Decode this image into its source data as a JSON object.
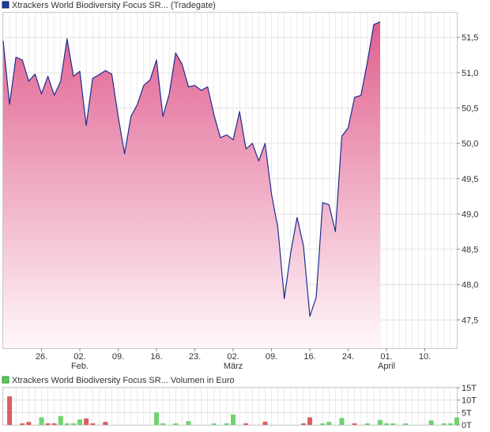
{
  "price_chart_title": "Xtrackers World Biodiversity Focus SR... (Tradegate)",
  "volume_chart_title": "Xtrackers World Biodiversity Focus SR... Volumen in Euro",
  "colors": {
    "price_line": "#1f2c8f",
    "area_top": "#e0608f",
    "area_bottom": "#fff7fa",
    "volume_up": "#6fd36f",
    "volume_down": "#d95f5f",
    "grid": "#dcdcdc",
    "legend_price": "#1f3f9f",
    "legend_volume": "#5cc85c"
  },
  "chart_data": [
    {
      "type": "area",
      "ylim": [
        47.1,
        51.85
      ],
      "y_ticks": [
        47.5,
        48.0,
        48.5,
        49.0,
        49.5,
        50.0,
        50.5,
        51.0,
        51.5
      ],
      "y_tick_labels": [
        "47,5",
        "48,0",
        "48,5",
        "49,0",
        "49,5",
        "50,0",
        "50,5",
        "51,0",
        "51,5"
      ],
      "x_ticks": [
        {
          "i": 6,
          "label": "26.",
          "sublabel": ""
        },
        {
          "i": 12,
          "label": "02.",
          "sublabel": "Feb."
        },
        {
          "i": 18,
          "label": "09.",
          "sublabel": ""
        },
        {
          "i": 24,
          "label": "16.",
          "sublabel": ""
        },
        {
          "i": 30,
          "label": "23.",
          "sublabel": ""
        },
        {
          "i": 36,
          "label": "02.",
          "sublabel": "März"
        },
        {
          "i": 42,
          "label": "09.",
          "sublabel": ""
        },
        {
          "i": 48,
          "label": "16.",
          "sublabel": ""
        },
        {
          "i": 54,
          "label": "24.",
          "sublabel": ""
        },
        {
          "i": 60,
          "label": "01.",
          "sublabel": "April"
        },
        {
          "i": 66,
          "label": "10.",
          "sublabel": ""
        }
      ],
      "values": [
        51.45,
        50.55,
        51.22,
        51.18,
        50.88,
        50.98,
        50.7,
        50.95,
        50.68,
        50.88,
        51.48,
        50.95,
        51.02,
        50.25,
        50.92,
        50.97,
        51.03,
        50.98,
        50.38,
        49.85,
        50.38,
        50.55,
        50.82,
        50.9,
        51.18,
        50.38,
        50.7,
        51.28,
        51.12,
        50.8,
        50.82,
        50.75,
        50.8,
        50.4,
        50.08,
        50.12,
        50.05,
        50.45,
        49.92,
        50.0,
        49.75,
        50.0,
        49.28,
        48.8,
        47.8,
        48.45,
        48.95,
        48.55,
        47.55,
        47.82,
        49.16,
        49.13,
        48.75,
        50.1,
        50.22,
        50.65,
        50.68,
        51.15,
        51.68,
        51.72
      ]
    },
    {
      "type": "bar",
      "ylim": [
        0,
        15
      ],
      "y_ticks": [
        0,
        5,
        10,
        15
      ],
      "y_tick_labels": [
        "0T",
        "5T",
        "10T",
        "15T"
      ],
      "bars": [
        {
          "i": 1,
          "value": 11.5,
          "direction": "down"
        },
        {
          "i": 3,
          "value": 0.6,
          "direction": "down"
        },
        {
          "i": 4,
          "value": 1.2,
          "direction": "down"
        },
        {
          "i": 6,
          "value": 3.0,
          "direction": "up"
        },
        {
          "i": 7,
          "value": 0.6,
          "direction": "down"
        },
        {
          "i": 8,
          "value": 0.6,
          "direction": "down"
        },
        {
          "i": 9,
          "value": 3.6,
          "direction": "up"
        },
        {
          "i": 10,
          "value": 0.6,
          "direction": "up"
        },
        {
          "i": 11,
          "value": 0.6,
          "direction": "up"
        },
        {
          "i": 12,
          "value": 2.2,
          "direction": "up"
        },
        {
          "i": 13,
          "value": 2.6,
          "direction": "down"
        },
        {
          "i": 14,
          "value": 0.6,
          "direction": "down"
        },
        {
          "i": 16,
          "value": 1.2,
          "direction": "down"
        },
        {
          "i": 24,
          "value": 5.0,
          "direction": "up"
        },
        {
          "i": 25,
          "value": 0.6,
          "direction": "up"
        },
        {
          "i": 27,
          "value": 0.6,
          "direction": "up"
        },
        {
          "i": 29,
          "value": 1.5,
          "direction": "up"
        },
        {
          "i": 33,
          "value": 0.6,
          "direction": "up"
        },
        {
          "i": 35,
          "value": 0.6,
          "direction": "up"
        },
        {
          "i": 36,
          "value": 4.2,
          "direction": "up"
        },
        {
          "i": 38,
          "value": 0.6,
          "direction": "down"
        },
        {
          "i": 41,
          "value": 1.3,
          "direction": "down"
        },
        {
          "i": 47,
          "value": 0.6,
          "direction": "down"
        },
        {
          "i": 48,
          "value": 3.0,
          "direction": "down"
        },
        {
          "i": 50,
          "value": 0.6,
          "direction": "up"
        },
        {
          "i": 51,
          "value": 1.2,
          "direction": "up"
        },
        {
          "i": 53,
          "value": 2.8,
          "direction": "up"
        },
        {
          "i": 55,
          "value": 0.6,
          "direction": "down"
        },
        {
          "i": 57,
          "value": 0.6,
          "direction": "up"
        },
        {
          "i": 59,
          "value": 2.0,
          "direction": "up"
        },
        {
          "i": 60,
          "value": 0.6,
          "direction": "up"
        },
        {
          "i": 61,
          "value": 0.6,
          "direction": "up"
        },
        {
          "i": 63,
          "value": 0.6,
          "direction": "up"
        },
        {
          "i": 67,
          "value": 1.8,
          "direction": "up"
        },
        {
          "i": 69,
          "value": 0.6,
          "direction": "up"
        },
        {
          "i": 70,
          "value": 0.6,
          "direction": "up"
        },
        {
          "i": 71,
          "value": 3.0,
          "direction": "up"
        }
      ]
    }
  ]
}
